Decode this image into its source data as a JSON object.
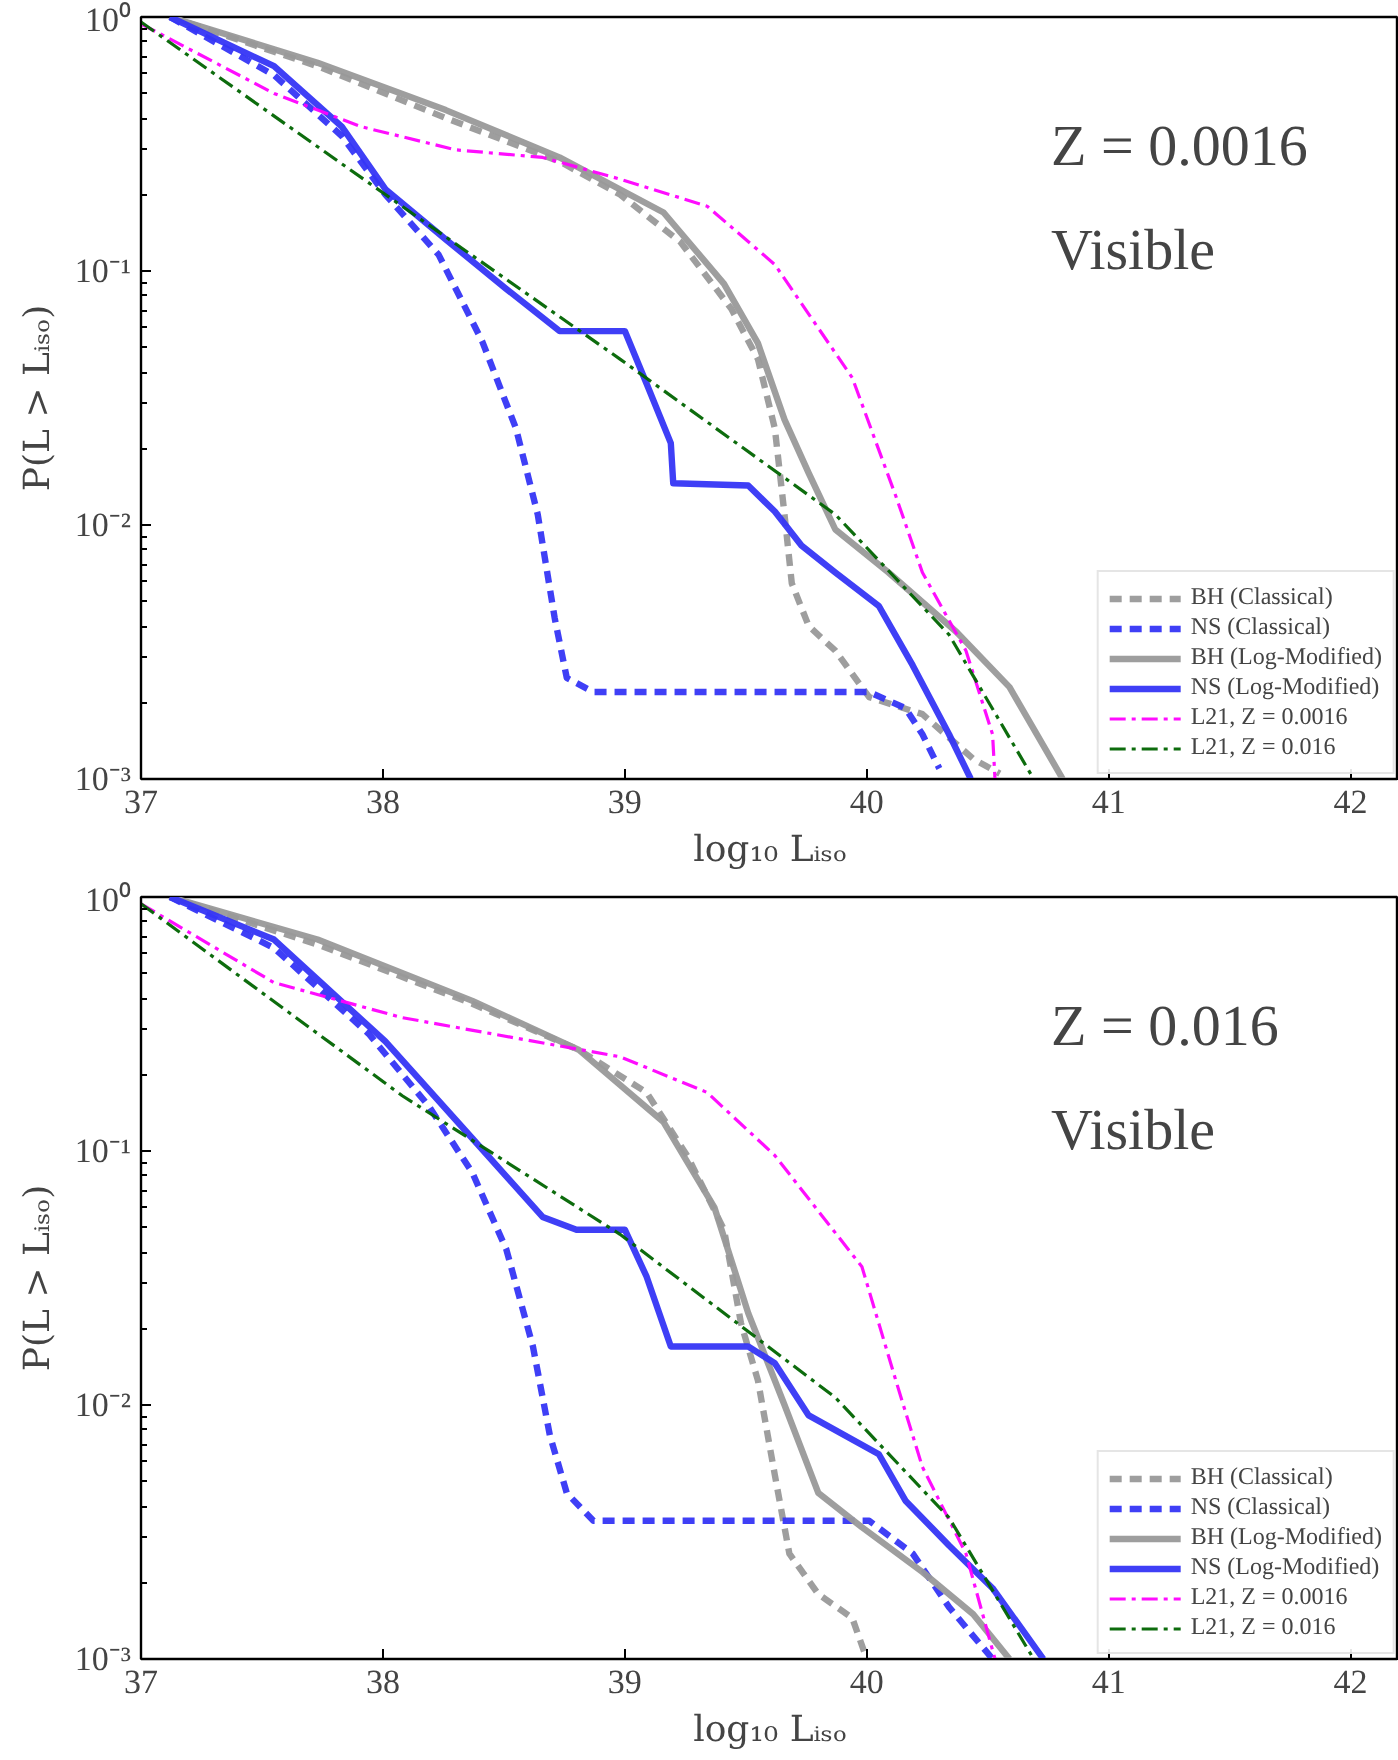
{
  "chart_data": [
    {
      "type": "line",
      "xlabel": "log₁₀ Lᵢₛₒ",
      "ylabel": "P(L > Lᵢₛₒ)",
      "annotations": [
        "Z = 0.0016",
        "Visible"
      ],
      "log": "y",
      "xlim": [
        37,
        42.2
      ],
      "ylim": [
        0.001,
        1
      ],
      "xticks": [
        37,
        38,
        39,
        40,
        41,
        42
      ],
      "yticks": [
        {
          "value": 0.001,
          "label": "10⁻³"
        },
        {
          "value": 0.01,
          "label": "10⁻²"
        },
        {
          "value": 0.1,
          "label": "10⁻¹"
        },
        {
          "value": 1,
          "label": "10⁰"
        }
      ],
      "grid": false,
      "legend": "bottom right",
      "series": [
        {
          "name": "BH (Classical)",
          "color": "#999999",
          "line_style": "dashed",
          "x": [
            37.12,
            37.73,
            38.26,
            38.73,
            38.98,
            39.23,
            39.44,
            39.55,
            39.62,
            39.66,
            39.69,
            39.76,
            39.87,
            40.01,
            40.23,
            40.44,
            40.55
          ],
          "values": [
            1,
            0.64,
            0.4,
            0.27,
            0.2,
            0.13,
            0.071,
            0.045,
            0.024,
            0.011,
            0.0059,
            0.004,
            0.0032,
            0.0021,
            0.0018,
            0.0012,
            0.00105
          ]
        },
        {
          "name": "NS (Classical)",
          "color": "#3535f5",
          "line_style": "dashed",
          "x": [
            37.12,
            37.55,
            37.83,
            38.01,
            38.23,
            38.41,
            38.55,
            38.64,
            38.71,
            38.76,
            38.87,
            40.01,
            40.16,
            40.23,
            40.3
          ],
          "values": [
            1,
            0.59,
            0.34,
            0.2,
            0.116,
            0.053,
            0.024,
            0.011,
            0.0043,
            0.0025,
            0.0022,
            0.0022,
            0.0019,
            0.0015,
            0.0011
          ]
        },
        {
          "name": "BH (Log-Modified)",
          "color": "#999999",
          "line_style": "solid",
          "x": [
            37.12,
            37.73,
            38.26,
            38.73,
            39.16,
            39.41,
            39.55,
            39.66,
            39.76,
            39.87,
            40.09,
            40.37,
            40.59,
            40.81
          ],
          "values": [
            1,
            0.66,
            0.43,
            0.28,
            0.17,
            0.089,
            0.052,
            0.026,
            0.016,
            0.0096,
            0.0065,
            0.0038,
            0.0023,
            0.001
          ]
        },
        {
          "name": "NS (Log-Modified)",
          "color": "#3535f5",
          "line_style": "solid",
          "x": [
            37.12,
            37.55,
            37.83,
            38.01,
            38.26,
            38.51,
            38.73,
            39.0,
            39.09,
            39.19,
            39.2,
            39.51,
            39.62,
            39.73,
            39.87,
            40.05,
            40.19,
            40.34,
            40.43
          ],
          "values": [
            1,
            0.64,
            0.37,
            0.21,
            0.133,
            0.085,
            0.058,
            0.058,
            0.036,
            0.021,
            0.0146,
            0.0143,
            0.0113,
            0.0083,
            0.0065,
            0.0048,
            0.0028,
            0.0015,
            0.001
          ]
        },
        {
          "name": "L21, Z = 0.0016",
          "color": "#ff00ff",
          "line_style": "dashdot",
          "x": [
            37.0,
            37.55,
            37.91,
            38.3,
            38.66,
            38.98,
            39.34,
            39.62,
            39.94,
            40.12,
            40.23,
            40.41,
            40.52,
            40.53
          ],
          "values": [
            0.94,
            0.5,
            0.37,
            0.3,
            0.28,
            0.23,
            0.18,
            0.106,
            0.038,
            0.013,
            0.0065,
            0.0032,
            0.0015,
            0.001
          ]
        },
        {
          "name": "L21, Z = 0.016",
          "color": "#006400",
          "line_style": "dashdot",
          "x": [
            37.0,
            38.01,
            38.98,
            39.87,
            40.34,
            40.69
          ],
          "values": [
            0.955,
            0.2,
            0.045,
            0.011,
            0.0037,
            0.001
          ]
        }
      ]
    },
    {
      "type": "line",
      "xlabel": "log₁₀ Lᵢₛₒ",
      "ylabel": "P(L > Lᵢₛₒ)",
      "annotations": [
        "Z = 0.016",
        "Visible"
      ],
      "log": "y",
      "xlim": [
        37,
        42.2
      ],
      "ylim": [
        0.001,
        1
      ],
      "xticks": [
        37,
        38,
        39,
        40,
        41,
        42
      ],
      "yticks": [
        {
          "value": 0.001,
          "label": "10⁻³"
        },
        {
          "value": 0.01,
          "label": "10⁻²"
        },
        {
          "value": 0.1,
          "label": "10⁻¹"
        },
        {
          "value": 1,
          "label": "10⁰"
        }
      ],
      "grid": false,
      "legend": "bottom right",
      "series": [
        {
          "name": "BH (Classical)",
          "color": "#999999",
          "line_style": "dashed",
          "x": [
            37.12,
            37.73,
            38.37,
            38.81,
            39.09,
            39.26,
            39.41,
            39.48,
            39.55,
            39.62,
            39.68,
            39.8,
            39.94,
            40.0
          ],
          "values": [
            1,
            0.65,
            0.38,
            0.25,
            0.17,
            0.095,
            0.049,
            0.021,
            0.0125,
            0.0053,
            0.0026,
            0.0018,
            0.00145,
            0.001
          ]
        },
        {
          "name": "NS (Classical)",
          "color": "#3535f5",
          "line_style": "dashed",
          "x": [
            37.12,
            37.55,
            37.94,
            38.19,
            38.37,
            38.51,
            38.62,
            38.69,
            38.76,
            38.87,
            40.01,
            40.19,
            40.34,
            40.52
          ],
          "values": [
            1,
            0.63,
            0.29,
            0.15,
            0.082,
            0.041,
            0.017,
            0.0076,
            0.0045,
            0.0035,
            0.0035,
            0.0026,
            0.0016,
            0.001
          ]
        },
        {
          "name": "BH (Log-Modified)",
          "color": "#999999",
          "line_style": "solid",
          "x": [
            37.12,
            37.73,
            38.37,
            38.81,
            39.16,
            39.37,
            39.51,
            39.66,
            39.8,
            39.98,
            40.23,
            40.44,
            40.59
          ],
          "values": [
            1,
            0.68,
            0.39,
            0.25,
            0.13,
            0.06,
            0.023,
            0.01,
            0.0045,
            0.0033,
            0.0022,
            0.0015,
            0.001
          ]
        },
        {
          "name": "NS (Log-Modified)",
          "color": "#3535f5",
          "line_style": "solid",
          "x": [
            37.12,
            37.55,
            38.01,
            38.37,
            38.66,
            38.8,
            39.0,
            39.09,
            39.19,
            39.51,
            39.62,
            39.76,
            40.05,
            40.16,
            40.34,
            40.52,
            40.73
          ],
          "values": [
            1,
            0.68,
            0.27,
            0.112,
            0.055,
            0.049,
            0.049,
            0.032,
            0.017,
            0.017,
            0.0146,
            0.0091,
            0.0064,
            0.0042,
            0.0028,
            0.0019,
            0.001
          ]
        },
        {
          "name": "L21, Z = 0.0016",
          "color": "#ff00ff",
          "line_style": "dashdot",
          "x": [
            37.0,
            37.55,
            38.08,
            38.58,
            38.98,
            39.34,
            39.62,
            39.98,
            40.12,
            40.23,
            40.41,
            40.53
          ],
          "values": [
            0.94,
            0.46,
            0.335,
            0.275,
            0.235,
            0.17,
            0.096,
            0.035,
            0.0125,
            0.0057,
            0.0026,
            0.001
          ]
        },
        {
          "name": "L21, Z = 0.016",
          "color": "#006400",
          "line_style": "dashdot",
          "x": [
            37.0,
            38.08,
            38.98,
            39.87,
            40.34,
            40.69
          ],
          "values": [
            0.94,
            0.165,
            0.047,
            0.0107,
            0.0036,
            0.001
          ]
        }
      ]
    }
  ]
}
